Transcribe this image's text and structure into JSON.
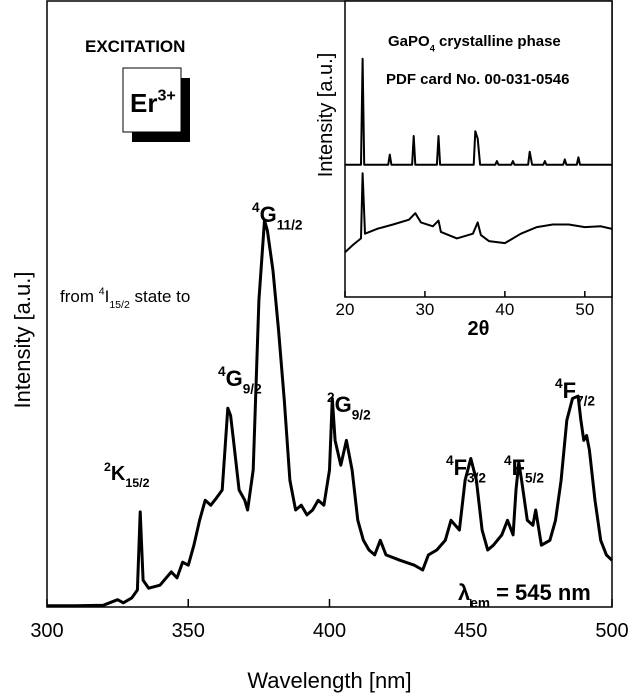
{
  "chart_data": [
    {
      "type": "line",
      "xlabel": "Wavelength [nm]",
      "ylabel": "Intensity [a.u.]",
      "xlim": [
        300,
        500
      ],
      "xticks": [
        300,
        350,
        400,
        450,
        500
      ],
      "ylim": [
        0,
        100
      ],
      "color": "#000000",
      "x": [
        300,
        310,
        320,
        325,
        327,
        330,
        332,
        333,
        334,
        336,
        340,
        344,
        346,
        348,
        350,
        352,
        354,
        356,
        358,
        360,
        362,
        364,
        365,
        366,
        368,
        370,
        371,
        373,
        375,
        377,
        378,
        380,
        382,
        384,
        386,
        388,
        390,
        392,
        394,
        396,
        398,
        400,
        401,
        402,
        404,
        406,
        408,
        410,
        412,
        414,
        416,
        418,
        420,
        425,
        430,
        433,
        435,
        438,
        441,
        443,
        446,
        448,
        450,
        452,
        454,
        456,
        458,
        461,
        463,
        465,
        466,
        467,
        468,
        470,
        472,
        473,
        475,
        478,
        480,
        482,
        484,
        486,
        488,
        489,
        490,
        491,
        492,
        494,
        496,
        498,
        500
      ],
      "values": [
        0.2,
        0.2,
        0.3,
        1.2,
        0.7,
        1.5,
        2.8,
        15.7,
        4.4,
        3.1,
        3.6,
        5.8,
        4.8,
        7.4,
        6.9,
        10.2,
        14.3,
        17.6,
        16.8,
        18.0,
        19.3,
        32.8,
        31.6,
        27.5,
        19.3,
        17.6,
        16.0,
        22.6,
        50.6,
        63.8,
        62.1,
        55.5,
        45.6,
        34.1,
        20.9,
        16.0,
        16.8,
        15.2,
        16.0,
        17.6,
        16.8,
        22.6,
        34.4,
        27.5,
        23.4,
        27.5,
        22.6,
        14.3,
        11.0,
        9.4,
        8.6,
        11.0,
        8.6,
        7.7,
        6.9,
        6.1,
        8.6,
        9.4,
        11.0,
        14.3,
        12.7,
        20.9,
        24.5,
        20.9,
        12.7,
        9.4,
        10.2,
        11.9,
        14.3,
        11.9,
        19.3,
        23.9,
        20.9,
        14.3,
        13.5,
        16.0,
        10.2,
        11.0,
        14.3,
        20.9,
        30.8,
        34.4,
        34.8,
        30.8,
        27.5,
        28.3,
        25.9,
        17.6,
        11.0,
        8.6,
        7.7
      ],
      "annotations": [
        [
          {
            "text": "EXCITATION",
            "script": "normal"
          }
        ],
        [
          {
            "text": "Er",
            "script": "normal"
          },
          {
            "text": "3+",
            "script": "sup"
          }
        ],
        [
          {
            "text": "from ",
            "script": "normal"
          },
          {
            "text": "4",
            "script": "sup"
          },
          {
            "text": "I",
            "script": "normal"
          },
          {
            "text": "15/2",
            "script": "sub"
          },
          {
            "text": " state to",
            "script": "normal"
          }
        ],
        [
          {
            "text": "2",
            "script": "sup"
          },
          {
            "text": "K",
            "script": "normal"
          },
          {
            "text": "15/2",
            "script": "sub"
          }
        ],
        [
          {
            "text": "4",
            "script": "sup"
          },
          {
            "text": "G",
            "script": "normal"
          },
          {
            "text": "9/2",
            "script": "sub"
          }
        ],
        [
          {
            "text": "4",
            "script": "sup"
          },
          {
            "text": "G",
            "script": "normal"
          },
          {
            "text": "11/2",
            "script": "sub"
          }
        ],
        [
          {
            "text": "2",
            "script": "sup"
          },
          {
            "text": "G",
            "script": "normal"
          },
          {
            "text": "9/2",
            "script": "sub"
          }
        ],
        [
          {
            "text": "4",
            "script": "sup"
          },
          {
            "text": "F",
            "script": "normal"
          },
          {
            "text": "3/2",
            "script": "sub"
          }
        ],
        [
          {
            "text": "4",
            "script": "sup"
          },
          {
            "text": "F",
            "script": "normal"
          },
          {
            "text": "5/2",
            "script": "sub"
          }
        ],
        [
          {
            "text": "4",
            "script": "sup"
          },
          {
            "text": "F",
            "script": "normal"
          },
          {
            "text": "7/2",
            "script": "sub"
          }
        ],
        [
          {
            "text": "λ",
            "script": "normal"
          },
          {
            "text": "em",
            "script": "sub"
          },
          {
            "text": " = 545 nm",
            "script": "normal"
          }
        ]
      ]
    },
    {
      "type": "line",
      "xlabel": "2θ",
      "ylabel": "Intensity [a.u.]",
      "xlim": [
        20,
        53.4
      ],
      "xticks": [
        20,
        30,
        40,
        50
      ],
      "ylim": [
        0,
        100
      ],
      "annotations": [
        [
          {
            "text": "GaPO",
            "script": "normal"
          },
          {
            "text": "4",
            "script": "sub"
          },
          {
            "text": " crystalline phase",
            "script": "normal"
          }
        ],
        [
          {
            "text": "PDF card No. 00-031-0546",
            "script": "normal"
          }
        ]
      ],
      "series": [
        {
          "color": "#000000",
          "x": [
            20,
            22.0,
            22.2,
            22.4,
            25.4,
            25.6,
            25.8,
            28.4,
            28.6,
            28.8,
            31.5,
            31.7,
            31.9,
            36.1,
            36.3,
            36.6,
            36.9,
            38.8,
            39,
            39.2,
            40.8,
            41,
            41.2,
            42.9,
            43.1,
            43.4,
            44.8,
            45,
            45.2,
            47.3,
            47.5,
            47.7,
            49.0,
            49.2,
            49.4,
            53.4
          ],
          "values": [
            44.7,
            44.7,
            80.5,
            44.7,
            44.7,
            48.1,
            44.7,
            44.7,
            54.4,
            44.7,
            44.7,
            54.4,
            44.7,
            44.7,
            56.0,
            53.5,
            44.7,
            44.7,
            45.9,
            44.7,
            44.7,
            45.9,
            44.7,
            44.7,
            49.1,
            44.7,
            44.7,
            45.9,
            44.7,
            44.7,
            46.5,
            44.7,
            44.7,
            47.2,
            44.7,
            44.7
          ]
        },
        {
          "color": "#000000",
          "x": [
            20,
            21,
            22,
            22.2,
            22.5,
            24,
            26,
            28,
            28.8,
            29.5,
            31,
            31.7,
            32,
            34,
            36,
            36.6,
            37,
            38,
            40,
            42,
            44,
            46,
            48,
            50,
            52,
            53.4
          ],
          "values": [
            15.1,
            17.6,
            19.8,
            41.8,
            21.4,
            23.0,
            24.5,
            26.1,
            28.3,
            25.2,
            23.9,
            25.8,
            22.0,
            19.8,
            21.4,
            25.2,
            20.9,
            18.9,
            18.2,
            21.4,
            23.6,
            24.5,
            24.5,
            23.6,
            23.9,
            23.0
          ]
        }
      ]
    }
  ]
}
